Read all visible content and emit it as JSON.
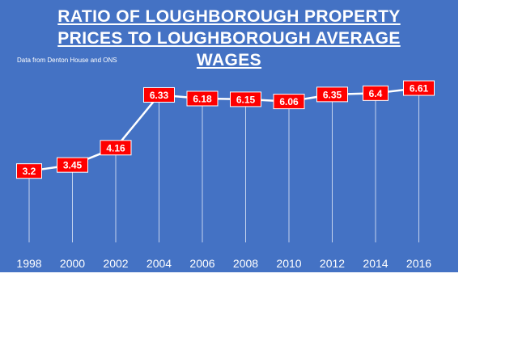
{
  "chart_data": {
    "type": "line",
    "title_lines": [
      "RATIO OF LOUGHBOROUGH PROPERTY",
      "PRICES TO LOUGHBOROUGH AVERAGE",
      "WAGES"
    ],
    "subtitle": "Data from Denton House and ONS",
    "categories": [
      "1998",
      "2000",
      "2002",
      "2004",
      "2006",
      "2008",
      "2010",
      "2012",
      "2014",
      "2016"
    ],
    "values": [
      3.2,
      3.45,
      4.16,
      6.33,
      6.18,
      6.15,
      6.06,
      6.35,
      6.4,
      6.61
    ],
    "xlabel": "",
    "ylabel": "",
    "ylim": [
      0,
      7.3
    ],
    "grid": false,
    "legend": "none",
    "colors": {
      "background": "#4472c4",
      "line": "#ffffff",
      "label_box": "#ff0000",
      "text": "#ffffff"
    }
  }
}
